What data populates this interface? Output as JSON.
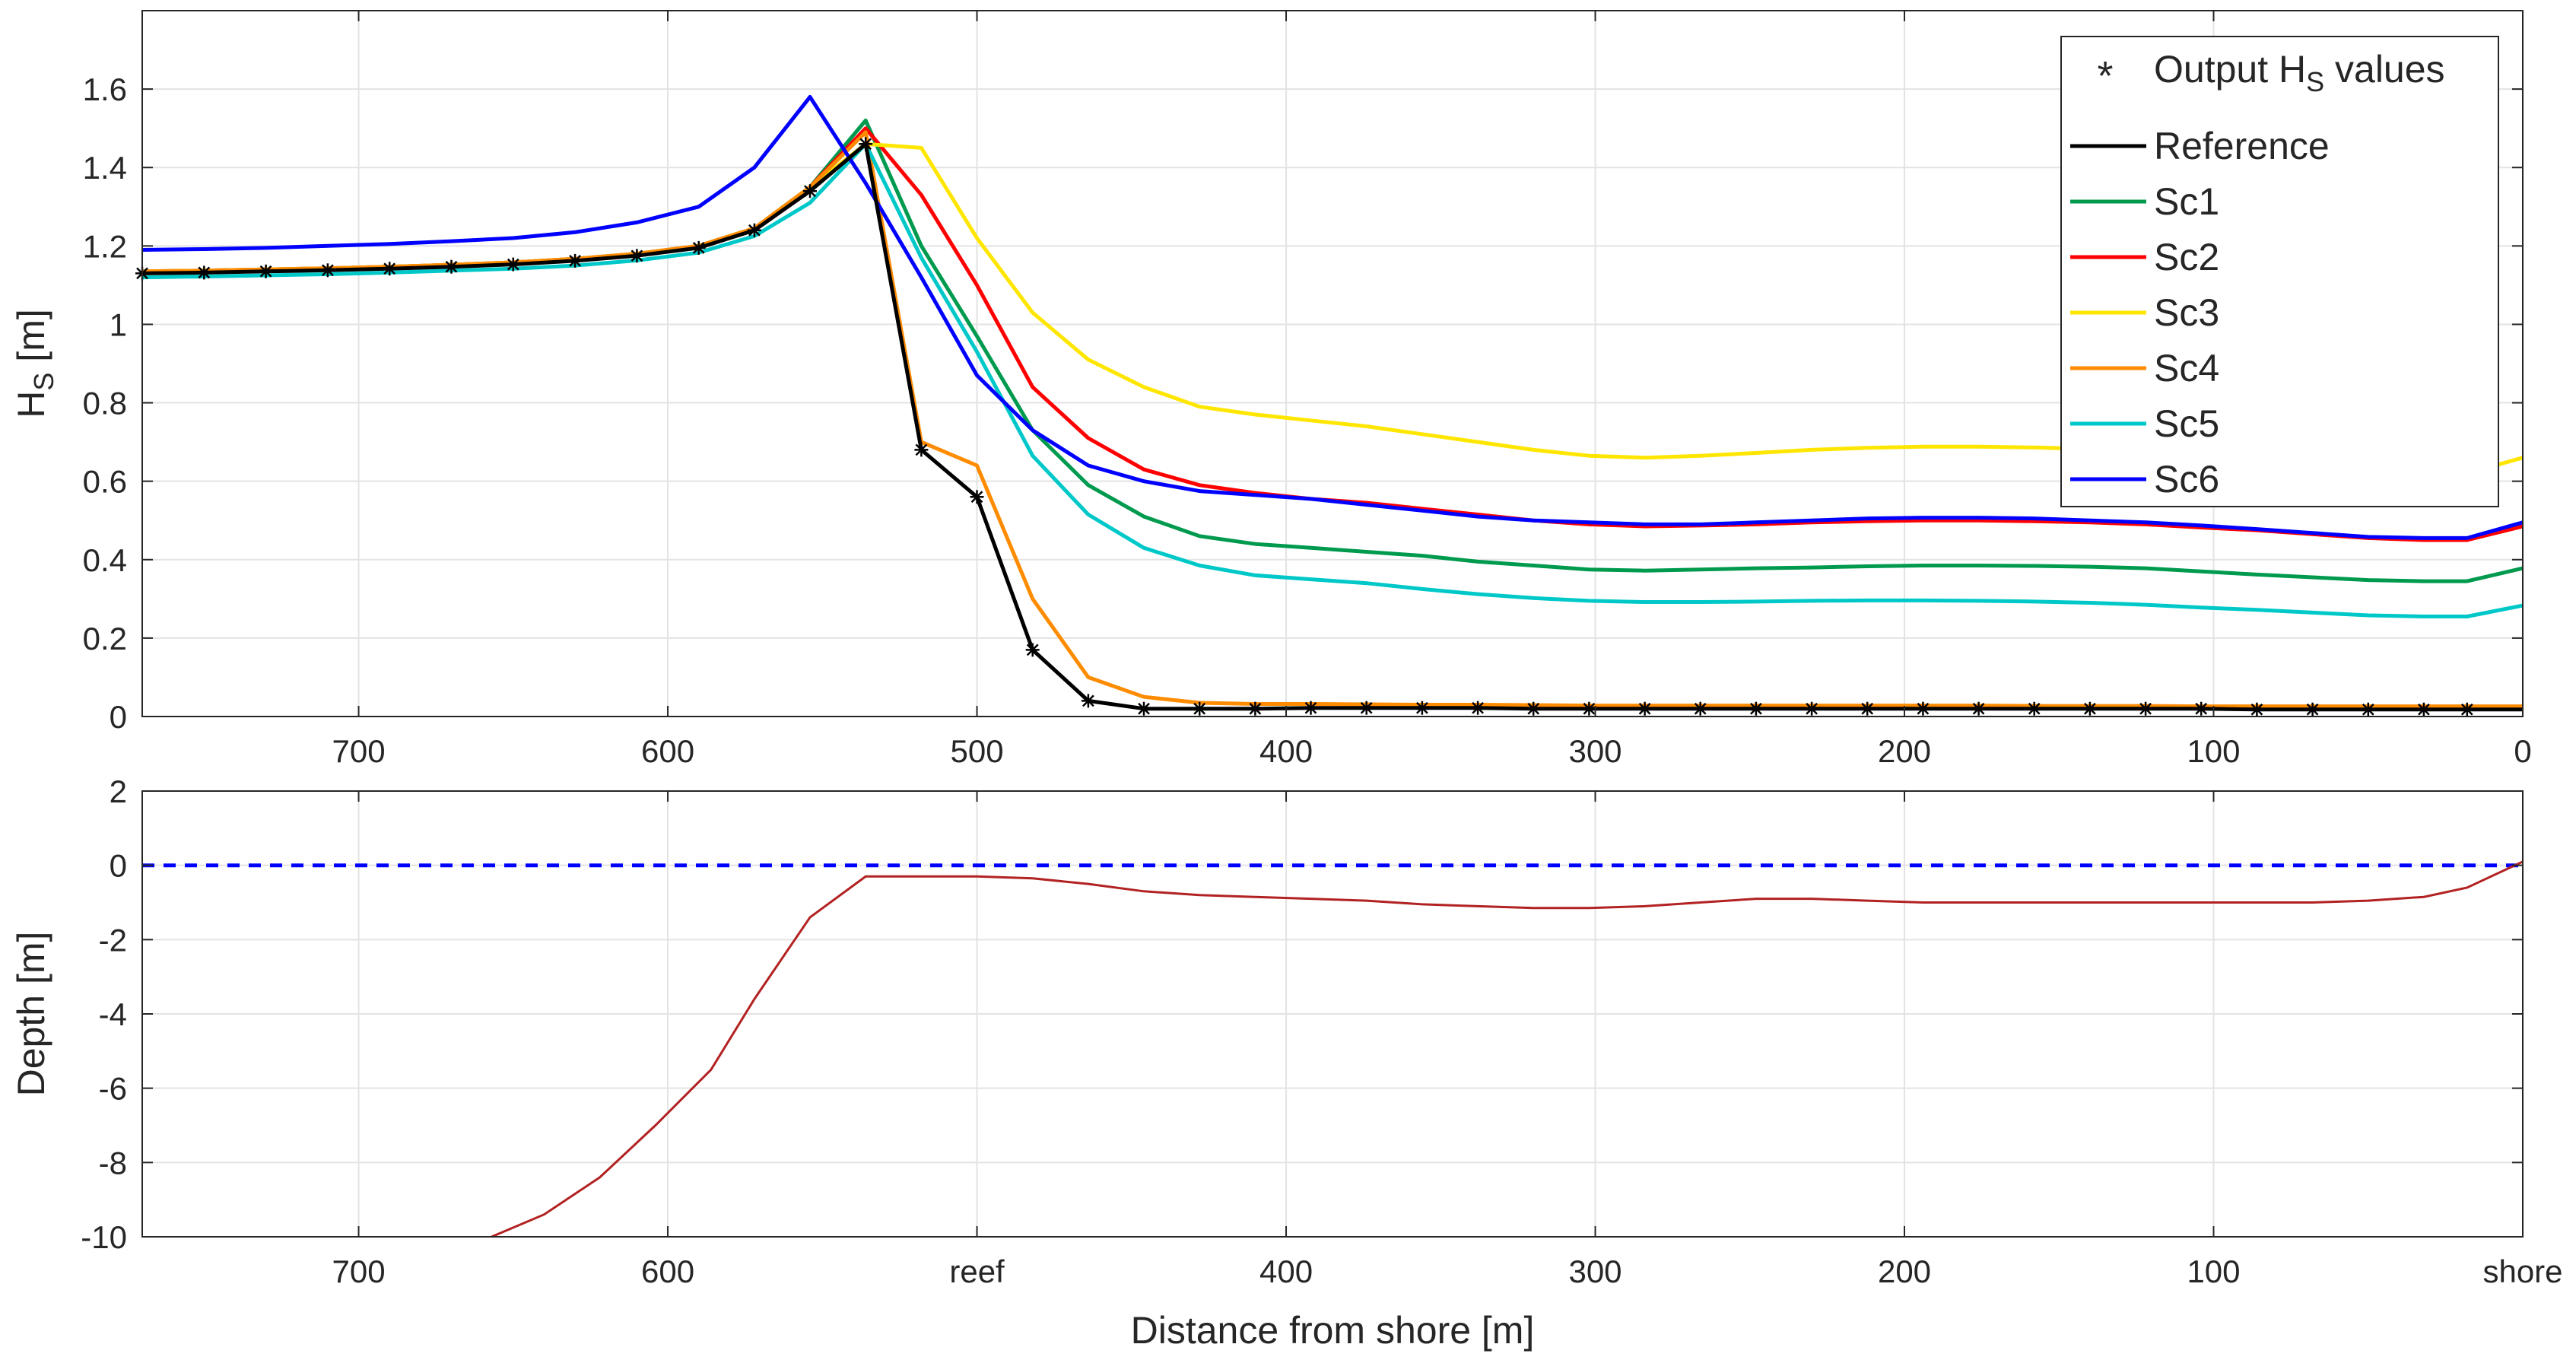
{
  "chart_data": [
    {
      "type": "line",
      "title": "",
      "ylabel_main": "H",
      "ylabel_sub": "S",
      "ylabel_unit": " [m]",
      "xlim": [
        0,
        770
      ],
      "x_reversed": true,
      "ylim": [
        0,
        1.8
      ],
      "grid": true,
      "xticks": [
        700,
        600,
        500,
        400,
        300,
        200,
        100,
        0
      ],
      "xtick_labels": [
        "700",
        "600",
        "500",
        "400",
        "300",
        "200",
        "100",
        "0"
      ],
      "yticks": [
        0,
        0.2,
        0.4,
        0.6,
        0.8,
        1,
        1.2,
        1.4,
        1.6
      ],
      "ytick_labels": [
        "0",
        "0.2",
        "0.4",
        "0.6",
        "0.8",
        "1",
        "1.2",
        "1.4",
        "1.6"
      ],
      "legend_position": "top-right",
      "marker_legend": {
        "label_main": "Output H",
        "label_sub": "S",
        "label_end": " values"
      },
      "x": [
        770,
        750,
        730,
        710,
        690,
        670,
        650,
        630,
        610,
        590,
        572,
        554,
        536,
        518,
        500,
        482,
        464,
        446,
        428,
        410,
        392,
        374,
        356,
        338,
        320,
        302,
        284,
        266,
        248,
        230,
        212,
        194,
        176,
        158,
        140,
        122,
        104,
        86,
        68,
        50,
        32,
        18,
        0
      ],
      "series": [
        {
          "name": "Reference",
          "color": "#000000",
          "values": [
            1.13,
            1.132,
            1.135,
            1.138,
            1.142,
            1.147,
            1.153,
            1.162,
            1.175,
            1.195,
            1.24,
            1.34,
            1.46,
            0.68,
            0.56,
            0.17,
            0.04,
            0.02,
            0.02,
            0.02,
            0.022,
            0.022,
            0.022,
            0.022,
            0.02,
            0.02,
            0.02,
            0.02,
            0.02,
            0.02,
            0.02,
            0.02,
            0.02,
            0.02,
            0.02,
            0.02,
            0.02,
            0.018,
            0.018,
            0.018,
            0.018,
            0.018,
            0.018
          ]
        },
        {
          "name": "Sc1",
          "color": "#009a4e",
          "values": [
            1.135,
            1.137,
            1.14,
            1.143,
            1.147,
            1.152,
            1.158,
            1.167,
            1.18,
            1.2,
            1.245,
            1.35,
            1.52,
            1.2,
            0.97,
            0.73,
            0.59,
            0.51,
            0.46,
            0.44,
            0.43,
            0.42,
            0.41,
            0.395,
            0.385,
            0.375,
            0.372,
            0.375,
            0.378,
            0.38,
            0.383,
            0.385,
            0.385,
            0.384,
            0.382,
            0.378,
            0.37,
            0.362,
            0.355,
            0.348,
            0.345,
            0.345,
            0.378
          ]
        },
        {
          "name": "Sc2",
          "color": "#ff0000",
          "values": [
            1.135,
            1.137,
            1.14,
            1.143,
            1.147,
            1.152,
            1.158,
            1.167,
            1.18,
            1.2,
            1.245,
            1.35,
            1.5,
            1.33,
            1.1,
            0.84,
            0.71,
            0.63,
            0.59,
            0.57,
            0.555,
            0.545,
            0.53,
            0.515,
            0.5,
            0.49,
            0.485,
            0.487,
            0.49,
            0.495,
            0.498,
            0.5,
            0.5,
            0.498,
            0.495,
            0.49,
            0.482,
            0.475,
            0.465,
            0.455,
            0.45,
            0.45,
            0.485
          ]
        },
        {
          "name": "Sc3",
          "color": "#ffe600",
          "values": [
            1.135,
            1.137,
            1.14,
            1.143,
            1.147,
            1.152,
            1.158,
            1.167,
            1.18,
            1.2,
            1.245,
            1.35,
            1.46,
            1.45,
            1.22,
            1.03,
            0.91,
            0.84,
            0.79,
            0.77,
            0.755,
            0.74,
            0.72,
            0.7,
            0.68,
            0.665,
            0.66,
            0.665,
            0.672,
            0.68,
            0.685,
            0.688,
            0.688,
            0.686,
            0.682,
            0.675,
            0.665,
            0.655,
            0.645,
            0.635,
            0.625,
            0.62,
            0.66
          ]
        },
        {
          "name": "Sc4",
          "color": "#ff8c00",
          "values": [
            1.135,
            1.137,
            1.14,
            1.143,
            1.147,
            1.152,
            1.158,
            1.167,
            1.18,
            1.2,
            1.245,
            1.35,
            1.49,
            0.7,
            0.64,
            0.3,
            0.1,
            0.05,
            0.035,
            0.032,
            0.032,
            0.031,
            0.03,
            0.03,
            0.029,
            0.028,
            0.028,
            0.028,
            0.028,
            0.028,
            0.028,
            0.028,
            0.028,
            0.027,
            0.027,
            0.027,
            0.026,
            0.026,
            0.026,
            0.026,
            0.026,
            0.026,
            0.026
          ]
        },
        {
          "name": "Sc5",
          "color": "#00c8c8",
          "values": [
            1.12,
            1.122,
            1.125,
            1.128,
            1.132,
            1.137,
            1.142,
            1.15,
            1.163,
            1.183,
            1.225,
            1.31,
            1.46,
            1.17,
            0.93,
            0.665,
            0.515,
            0.43,
            0.385,
            0.36,
            0.35,
            0.34,
            0.325,
            0.312,
            0.302,
            0.295,
            0.292,
            0.292,
            0.293,
            0.295,
            0.296,
            0.296,
            0.295,
            0.293,
            0.29,
            0.285,
            0.278,
            0.272,
            0.265,
            0.258,
            0.255,
            0.255,
            0.283
          ]
        },
        {
          "name": "Sc6",
          "color": "#0000ff",
          "values": [
            1.19,
            1.192,
            1.195,
            1.2,
            1.205,
            1.212,
            1.22,
            1.235,
            1.26,
            1.3,
            1.4,
            1.58,
            1.36,
            1.12,
            0.87,
            0.73,
            0.64,
            0.6,
            0.575,
            0.565,
            0.555,
            0.54,
            0.525,
            0.51,
            0.5,
            0.495,
            0.49,
            0.49,
            0.495,
            0.5,
            0.505,
            0.507,
            0.507,
            0.505,
            0.5,
            0.495,
            0.487,
            0.478,
            0.468,
            0.458,
            0.455,
            0.455,
            0.495
          ]
        }
      ]
    },
    {
      "type": "line",
      "title": "",
      "xlabel": "Distance from shore [m]",
      "ylabel": "Depth [m]",
      "xlim": [
        0,
        770
      ],
      "x_reversed": true,
      "ylim": [
        -10,
        2
      ],
      "grid": true,
      "xticks": [
        700,
        600,
        500,
        400,
        300,
        200,
        100,
        0
      ],
      "xtick_labels": [
        "700",
        "600",
        "reef",
        "400",
        "300",
        "200",
        "100",
        "shore"
      ],
      "yticks": [
        -10,
        -8,
        -6,
        -4,
        -2,
        0,
        2
      ],
      "ytick_labels": [
        "-10",
        "-8",
        "-6",
        "-4",
        "-2",
        "0",
        "2"
      ],
      "series": [
        {
          "color": "#0000ff",
          "style": "dashed",
          "x": [
            770,
            0
          ],
          "values": [
            0,
            0
          ]
        },
        {
          "color": "#b22222",
          "style": "solid",
          "x": [
            657,
            640,
            622,
            604,
            586,
            572,
            554,
            536,
            518,
            500,
            482,
            464,
            446,
            428,
            410,
            392,
            374,
            356,
            338,
            320,
            302,
            284,
            266,
            248,
            230,
            212,
            194,
            176,
            158,
            140,
            122,
            104,
            86,
            68,
            50,
            32,
            18,
            0
          ],
          "values": [
            -10,
            -9.4,
            -8.4,
            -7.0,
            -5.5,
            -3.6,
            -1.4,
            -0.3,
            -0.3,
            -0.3,
            -0.35,
            -0.5,
            -0.7,
            -0.8,
            -0.85,
            -0.9,
            -0.95,
            -1.05,
            -1.1,
            -1.15,
            -1.15,
            -1.1,
            -1.0,
            -0.9,
            -0.9,
            -0.95,
            -1.0,
            -1.0,
            -1.0,
            -1.0,
            -1.0,
            -1.0,
            -1.0,
            -1.0,
            -0.95,
            -0.85,
            -0.6,
            0.1
          ]
        }
      ]
    }
  ]
}
